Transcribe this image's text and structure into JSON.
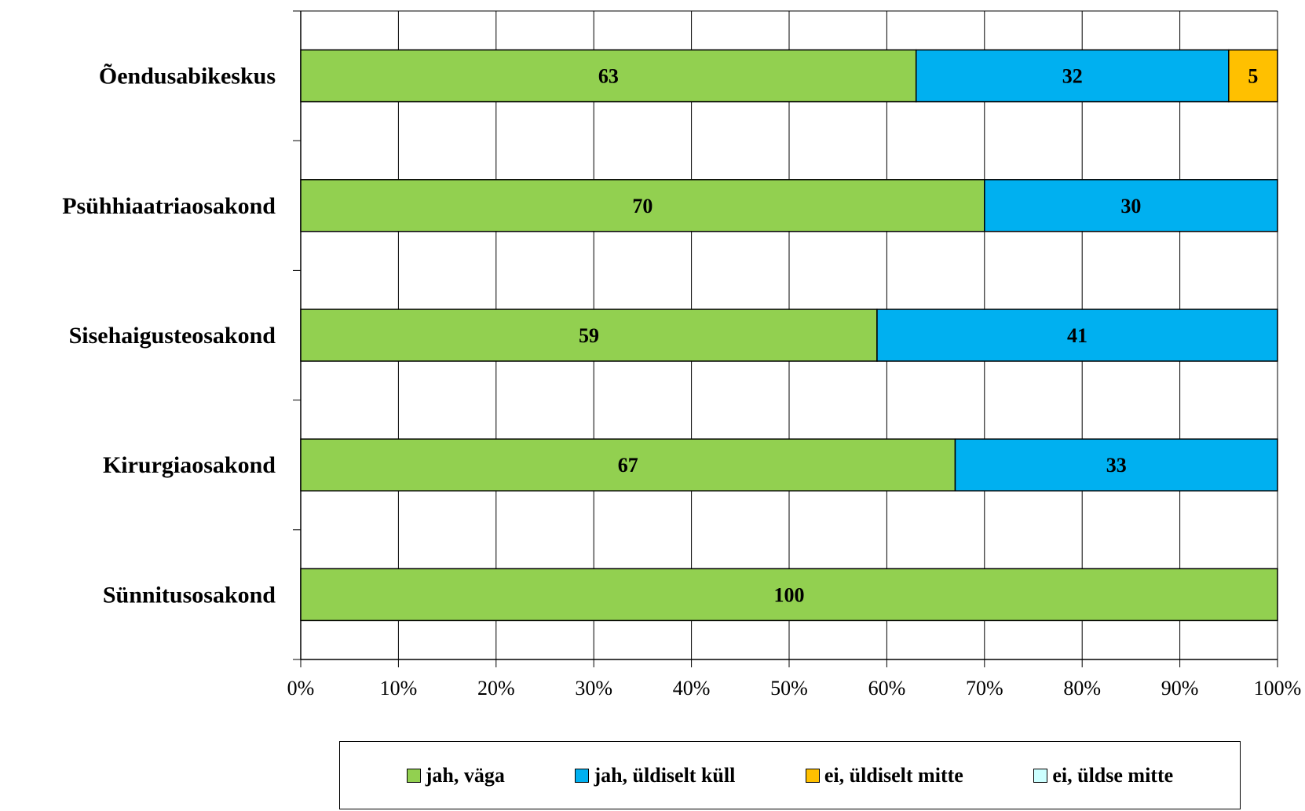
{
  "chart_data": {
    "type": "bar",
    "orientation": "horizontal",
    "stacked": "percent",
    "categories": [
      "Õendusabikeskus",
      "Psühhiaatriaosakond",
      "Sisehaigusteosakond",
      "Kirurgiaosakond",
      "Sünnitusosakond"
    ],
    "series": [
      {
        "name": "jah, väga",
        "color": "#92d050",
        "values": [
          63,
          70,
          59,
          67,
          100
        ]
      },
      {
        "name": "jah, üldiselt küll",
        "color": "#00b0f0",
        "values": [
          32,
          30,
          41,
          33,
          0
        ]
      },
      {
        "name": "ei, üldiselt mitte",
        "color": "#ffc000",
        "values": [
          5,
          0,
          0,
          0,
          0
        ]
      },
      {
        "name": "ei, üldse mitte",
        "color": "#ccffff",
        "values": [
          0,
          0,
          0,
          0,
          0
        ]
      }
    ],
    "xlim": [
      0,
      100
    ],
    "xticks": [
      "0%",
      "10%",
      "20%",
      "30%",
      "40%",
      "50%",
      "60%",
      "70%",
      "80%",
      "90%",
      "100%"
    ],
    "grid": true,
    "legend_position": "bottom"
  }
}
